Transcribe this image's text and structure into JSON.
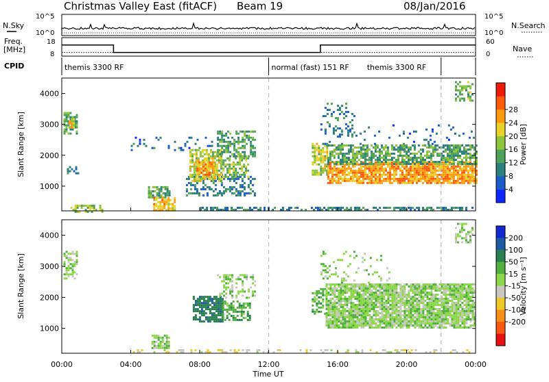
{
  "header": {
    "station": "Christmas Valley East (fitACF)",
    "beam": "Beam 19",
    "date": "08/Jan/2016"
  },
  "noise_panel": {
    "left_label": "N.Sky",
    "right_label": "N.Search",
    "left_ticks": [
      "10^5",
      "10^0"
    ],
    "right_ticks": [
      "10^5",
      "10^0"
    ]
  },
  "freq_panel": {
    "left_label_1": "Freq.",
    "left_label_2": "[MHz]",
    "right_label": "Nave",
    "left_ticks": [
      "18",
      "8"
    ],
    "right_ticks": [
      "60",
      "0"
    ],
    "freq_steps": [
      {
        "from_h": 0.0,
        "to_h": 3.0,
        "value": 14
      },
      {
        "from_h": 3.0,
        "to_h": 15.0,
        "value": 10
      },
      {
        "from_h": 15.0,
        "to_h": 24.0,
        "value": 14
      }
    ],
    "nave_level": 12
  },
  "cpid": {
    "label": "CPID",
    "segments": [
      {
        "text": "themis 3300 RF",
        "start_h": 0.0
      },
      {
        "text": "normal (fast) 151 RF",
        "start_h": 12.0
      },
      {
        "text": "themis 3300 RF",
        "start_h": 22.0
      }
    ],
    "right_text_h": 17.7
  },
  "axes": {
    "ylabel": "Slant Range [km]",
    "xlabel": "Time UT",
    "x_ticks": [
      "00:00",
      "04:00",
      "08:00",
      "12:00",
      "16:00",
      "20:00",
      "00:00"
    ],
    "y_ticks": [
      "1000",
      "2000",
      "3000",
      "4000"
    ],
    "y_range": [
      200,
      4500
    ],
    "x_range_h": [
      0,
      24
    ],
    "dashed_lines_h": [
      12,
      22
    ]
  },
  "colorbars": {
    "power": {
      "label": "Power [dB]",
      "ticks": [
        "4",
        "8",
        "12",
        "16",
        "20",
        "24",
        "28"
      ],
      "colors": [
        "#0a28ff",
        "#1c5cc8",
        "#2c7f7a",
        "#4fa25a",
        "#8cc43a",
        "#e7d12a",
        "#ff9a10",
        "#ff5a0a",
        "#ee1a0a"
      ]
    },
    "velocity": {
      "label": "Velocity [m s⁻¹]",
      "ticks": [
        "200",
        "100",
        "50",
        "15",
        "-15",
        "-50",
        "-100",
        "-200"
      ],
      "colors": [
        "#1428d0",
        "#1e5aa6",
        "#2a8050",
        "#52b040",
        "#8cd84a",
        "#c8c8c0",
        "#f0c828",
        "#f89018",
        "#f85810",
        "#e81010"
      ]
    }
  },
  "chart_data": {
    "type": "heatmap",
    "title": "Christmas Valley East (fitACF)",
    "xlabel": "Time UT",
    "ylabel": "Slant Range [km]",
    "xlim_h": [
      0,
      24
    ],
    "ylim_km": [
      200,
      4500
    ],
    "power_regions": [
      {
        "t0": 0.1,
        "t1": 0.9,
        "r0": 2700,
        "r1": 3400,
        "dB": 14,
        "density": 0.7
      },
      {
        "t0": 0.4,
        "t1": 0.7,
        "r0": 2900,
        "r1": 3200,
        "dB": 22,
        "density": 0.8
      },
      {
        "t0": 0.3,
        "t1": 1.0,
        "r0": 1450,
        "r1": 1650,
        "dB": 8,
        "density": 0.4
      },
      {
        "t0": 0.5,
        "t1": 2.4,
        "r0": 200,
        "r1": 400,
        "dB": 18,
        "density": 0.5
      },
      {
        "t0": 5.0,
        "t1": 6.2,
        "r0": 650,
        "r1": 1000,
        "dB": 14,
        "density": 0.7
      },
      {
        "t0": 5.3,
        "t1": 6.6,
        "r0": 200,
        "r1": 650,
        "dB": 24,
        "density": 0.75
      },
      {
        "t0": 7.2,
        "t1": 11.2,
        "r0": 700,
        "r1": 1400,
        "dB": 10,
        "density": 0.45
      },
      {
        "t0": 7.4,
        "t1": 9.3,
        "r0": 1150,
        "r1": 2200,
        "dB": 20,
        "density": 0.7
      },
      {
        "t0": 7.8,
        "t1": 8.8,
        "r0": 1350,
        "r1": 1800,
        "dB": 26,
        "density": 0.8
      },
      {
        "t0": 9.2,
        "t1": 10.8,
        "r0": 1300,
        "r1": 2000,
        "dB": 18,
        "density": 0.6
      },
      {
        "t0": 9.0,
        "t1": 11.2,
        "r0": 2000,
        "r1": 2800,
        "dB": 13,
        "density": 0.55
      },
      {
        "t0": 4.0,
        "t1": 9.0,
        "r0": 2200,
        "r1": 2600,
        "dB": 8,
        "density": 0.12
      },
      {
        "t0": 14.5,
        "t1": 15.4,
        "r0": 1400,
        "r1": 2400,
        "dB": 20,
        "density": 0.7
      },
      {
        "t0": 15.4,
        "t1": 24.0,
        "r0": 1100,
        "r1": 1800,
        "dB": 26,
        "density": 0.85
      },
      {
        "t0": 15.4,
        "t1": 24.0,
        "r0": 1750,
        "r1": 2350,
        "dB": 14,
        "density": 0.65
      },
      {
        "t0": 15.0,
        "t1": 24.0,
        "r0": 2350,
        "r1": 3000,
        "dB": 8,
        "density": 0.08
      },
      {
        "t0": 15.0,
        "t1": 17.0,
        "r0": 2600,
        "r1": 3700,
        "dB": 10,
        "density": 0.2
      },
      {
        "t0": 22.8,
        "t1": 23.8,
        "r0": 3800,
        "r1": 4400,
        "dB": 16,
        "density": 0.5
      },
      {
        "t0": 8.0,
        "t1": 24.0,
        "r0": 200,
        "r1": 330,
        "dB": 10,
        "density": 0.5
      }
    ],
    "velocity_regions": [
      {
        "t0": 0.1,
        "t1": 0.9,
        "r0": 2600,
        "r1": 3500,
        "v": 0,
        "density": 0.6
      },
      {
        "t0": 5.2,
        "t1": 6.2,
        "r0": 350,
        "r1": 800,
        "v": 0,
        "density": 0.7
      },
      {
        "t0": 7.6,
        "t1": 9.3,
        "r0": 1250,
        "r1": 2050,
        "v": 80,
        "density": 0.75
      },
      {
        "t0": 9.3,
        "t1": 10.9,
        "r0": 1300,
        "r1": 1900,
        "v": 40,
        "density": 0.55
      },
      {
        "t0": 9.0,
        "t1": 11.2,
        "r0": 2000,
        "r1": 2750,
        "v": 0,
        "density": 0.35
      },
      {
        "t0": 14.5,
        "t1": 15.3,
        "r0": 1500,
        "r1": 2300,
        "v": 30,
        "density": 0.6
      },
      {
        "t0": 15.3,
        "t1": 24.0,
        "r0": 1050,
        "r1": 2450,
        "v": 0,
        "density": 0.85
      },
      {
        "t0": 15.0,
        "t1": 19.0,
        "r0": 2500,
        "r1": 3500,
        "v": 0,
        "density": 0.15
      },
      {
        "t0": 22.8,
        "t1": 23.8,
        "r0": 3800,
        "r1": 4400,
        "v": 0,
        "density": 0.45
      },
      {
        "t0": 4.0,
        "t1": 24.0,
        "r0": 200,
        "r1": 330,
        "v": -40,
        "density": 0.3
      }
    ]
  }
}
